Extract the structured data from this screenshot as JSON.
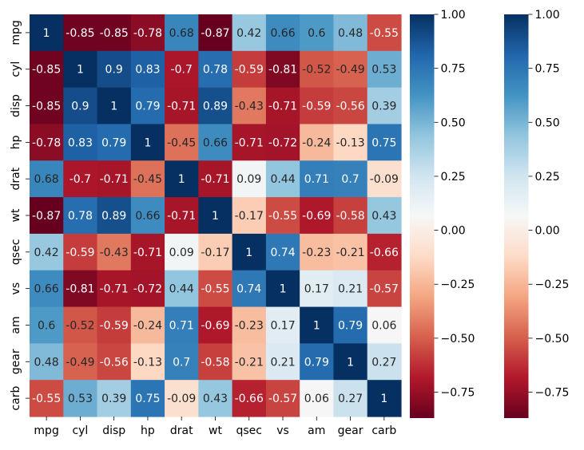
{
  "chart_data": {
    "type": "heatmap",
    "title": "",
    "xlabel": "",
    "ylabel": "",
    "colormap": "RdBu",
    "vmin": -0.87,
    "vmax": 1.0,
    "annotations": true,
    "categories": [
      "mpg",
      "cyl",
      "disp",
      "hp",
      "drat",
      "wt",
      "qsec",
      "vs",
      "am",
      "gear",
      "carb"
    ],
    "values": [
      [
        1,
        -0.85,
        -0.85,
        -0.78,
        0.68,
        -0.87,
        0.42,
        0.66,
        0.6,
        0.48,
        -0.55
      ],
      [
        -0.85,
        1,
        0.9,
        0.83,
        -0.7,
        0.78,
        -0.59,
        -0.81,
        -0.52,
        -0.49,
        0.53
      ],
      [
        -0.85,
        0.9,
        1,
        0.79,
        -0.71,
        0.89,
        -0.43,
        -0.71,
        -0.59,
        -0.56,
        0.39
      ],
      [
        -0.78,
        0.83,
        0.79,
        1,
        -0.45,
        0.66,
        -0.71,
        -0.72,
        -0.24,
        -0.13,
        0.75
      ],
      [
        0.68,
        -0.7,
        -0.71,
        -0.45,
        1,
        -0.71,
        0.09,
        0.44,
        0.71,
        0.7,
        -0.09
      ],
      [
        -0.87,
        0.78,
        0.89,
        0.66,
        -0.71,
        1,
        -0.17,
        -0.55,
        -0.69,
        -0.58,
        0.43
      ],
      [
        0.42,
        -0.59,
        -0.43,
        -0.71,
        0.09,
        -0.17,
        1,
        0.74,
        -0.23,
        -0.21,
        -0.66
      ],
      [
        0.66,
        -0.81,
        -0.71,
        -0.72,
        0.44,
        -0.55,
        0.74,
        1,
        0.17,
        0.21,
        -0.57
      ],
      [
        0.6,
        -0.52,
        -0.59,
        -0.24,
        0.71,
        -0.69,
        -0.23,
        0.17,
        1,
        0.79,
        0.06
      ],
      [
        0.48,
        -0.49,
        -0.56,
        -0.13,
        0.7,
        -0.58,
        -0.21,
        0.21,
        0.79,
        1,
        0.27
      ],
      [
        -0.55,
        0.53,
        0.39,
        0.75,
        -0.09,
        0.43,
        -0.66,
        -0.57,
        0.06,
        0.27,
        1
      ]
    ],
    "colorbars": [
      {
        "ticks": [
          1.0,
          0.75,
          0.5,
          0.25,
          0.0,
          -0.25,
          -0.5,
          -0.75
        ],
        "tick_labels": [
          "1.00",
          "0.75",
          "0.50",
          "0.25",
          "0.00",
          "−0.25",
          "−0.50",
          "−0.75"
        ]
      },
      {
        "ticks": [
          1.0,
          0.75,
          0.5,
          0.25,
          0.0,
          -0.25,
          -0.5,
          -0.75
        ],
        "tick_labels": [
          "1.00",
          "0.75",
          "0.50",
          "0.25",
          "0.00",
          "−0.25",
          "−0.50",
          "−0.75"
        ]
      }
    ]
  }
}
